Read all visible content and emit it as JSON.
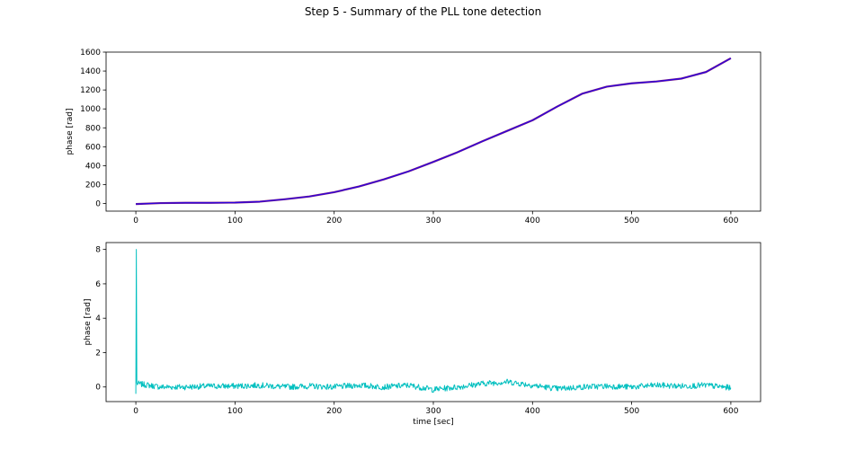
{
  "figure_title": "Step 5 - Summary of the PLL tone detection",
  "chart_data": [
    {
      "type": "line",
      "title": "",
      "xlabel": "",
      "ylabel": "phase [rad]",
      "xlim": [
        -30,
        630
      ],
      "ylim": [
        -80,
        1600
      ],
      "xticks": [
        0,
        100,
        200,
        300,
        400,
        500,
        600
      ],
      "yticks": [
        0,
        200,
        400,
        600,
        800,
        1000,
        1200,
        1400,
        1600
      ],
      "grid": false,
      "series": [
        {
          "color": "#2a00e0",
          "overlay_color": "#7f2080",
          "x": [
            0,
            25,
            50,
            75,
            100,
            125,
            150,
            175,
            200,
            225,
            250,
            275,
            300,
            325,
            350,
            375,
            400,
            425,
            450,
            475,
            500,
            525,
            550,
            575,
            600
          ],
          "y": [
            -5,
            5,
            8,
            8,
            10,
            20,
            45,
            75,
            120,
            180,
            255,
            340,
            440,
            545,
            660,
            770,
            880,
            1025,
            1160,
            1235,
            1270,
            1290,
            1320,
            1390,
            1535
          ]
        }
      ]
    },
    {
      "type": "line",
      "title": "",
      "xlabel": "time [sec]",
      "ylabel": "phase [rad]",
      "xlim": [
        -30,
        630
      ],
      "ylim": [
        -0.85,
        8.4
      ],
      "xticks": [
        0,
        100,
        200,
        300,
        400,
        500,
        600
      ],
      "yticks": [
        0,
        2,
        4,
        6,
        8
      ],
      "grid": false,
      "series": [
        {
          "color": "#00bfbf",
          "x": [
            0,
            0.5,
            1,
            25,
            50,
            75,
            100,
            125,
            150,
            175,
            200,
            225,
            250,
            275,
            300,
            325,
            350,
            375,
            400,
            425,
            450,
            475,
            500,
            525,
            550,
            575,
            600
          ],
          "y": [
            -0.4,
            8.0,
            0.2,
            0.0,
            0.0,
            0.05,
            0.05,
            0.1,
            0.0,
            0.05,
            0.0,
            0.1,
            0.0,
            0.1,
            -0.15,
            0.0,
            0.2,
            0.3,
            0.1,
            -0.1,
            0.0,
            0.05,
            0.0,
            0.1,
            0.05,
            0.1,
            -0.05
          ]
        }
      ]
    }
  ]
}
